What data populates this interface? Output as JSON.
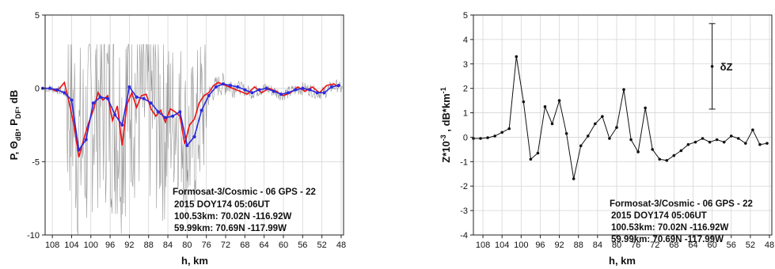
{
  "chart_data": [
    {
      "type": "line",
      "xlabel": "h, km",
      "ylabel_main": "P, Θ",
      "ylabel_sub1": "dB",
      "ylabel_mid": ", P",
      "ylabel_sub2": "DF",
      "ylabel_end": ", dB",
      "xlim": [
        109.5,
        47.5
      ],
      "ylim": [
        -10,
        5
      ],
      "x_ticks": [
        "108",
        "104",
        "100",
        "96",
        "92",
        "88",
        "84",
        "80",
        "76",
        "72",
        "68",
        "64",
        "60",
        "56",
        "52",
        "48"
      ],
      "y_ticks": [
        "5",
        "0",
        "-5",
        "-10"
      ],
      "grid": true,
      "annotations": [
        "Formosat-3/Cosmic - 06  GPS - 22",
        "2015 DOY174 05:06UT",
        "100.53km:  70.02N   -116.92W",
        "59.99km:   70.69N   -117.99W"
      ],
      "colors": {
        "blue": "#2b2be0",
        "red": "#ee1111",
        "gray": "#777777"
      },
      "series": [
        {
          "color": "blue",
          "x": [
            110,
            108.5,
            107,
            105.5,
            104,
            102.5,
            101,
            99.5,
            98,
            96.5,
            95,
            93.5,
            92,
            90.5,
            89,
            87.5,
            86,
            84.5,
            83,
            81.5,
            80,
            78.5,
            77,
            75.5,
            74,
            72.5,
            71,
            69.5,
            68,
            66.5,
            65,
            63.5,
            62,
            60.5,
            59,
            57.5,
            56,
            54.5,
            53,
            51.5,
            50,
            48.5
          ],
          "y": [
            0,
            0,
            -0.1,
            -0.3,
            -0.8,
            -4.2,
            -3.5,
            -1.0,
            -0.6,
            -0.7,
            -1.8,
            -2.5,
            0.1,
            -0.6,
            -0.7,
            -1.0,
            -1.6,
            -2.0,
            -1.9,
            -1.6,
            -3.9,
            -3.3,
            -1.5,
            -0.5,
            0.1,
            0.3,
            0.2,
            0.1,
            -0.1,
            -0.3,
            -0.1,
            0.0,
            -0.2,
            -0.4,
            -0.3,
            -0.1,
            0.0,
            -0.1,
            -0.3,
            -0.3,
            0.1,
            0.2
          ]
        },
        {
          "color": "red",
          "x": [
            110,
            108.5,
            107,
            105.5,
            104.5,
            103.5,
            102.5,
            101.5,
            100.5,
            99.5,
            98.5,
            97.5,
            96.5,
            95.5,
            94.5,
            93.5,
            92.5,
            91.5,
            90.5,
            89.5,
            88.5,
            87.5,
            86.5,
            85.5,
            84.5,
            83.5,
            82.5,
            81.5,
            80.5,
            79.5,
            78.5,
            77.5,
            76.5,
            75.5,
            74.5,
            73.5,
            72,
            70.5,
            69,
            67.5,
            66,
            64.5,
            63,
            61.5,
            60,
            58.5,
            57,
            55.5,
            54,
            52.5,
            51,
            49.5,
            48.5
          ],
          "y": [
            0,
            0,
            -0.2,
            0.4,
            -1.0,
            -2.5,
            -4.7,
            -3.5,
            -2.4,
            -1.5,
            -0.3,
            -0.8,
            -0.5,
            -2.2,
            -1.2,
            -3.9,
            -1.1,
            -0.3,
            -1.3,
            -0.5,
            -0.4,
            -1.4,
            -1.9,
            -1.5,
            -2.3,
            -1.4,
            -1.6,
            -1.9,
            -3.8,
            -2.5,
            -2.1,
            -1.0,
            -0.5,
            -0.3,
            0.2,
            0.4,
            0.2,
            0.0,
            -0.2,
            -0.4,
            0.1,
            -0.3,
            0.0,
            -0.2,
            -0.5,
            -0.3,
            0.1,
            -0.2,
            0.1,
            -0.3,
            0.2,
            0.3,
            0.1
          ]
        }
      ]
    },
    {
      "type": "line",
      "xlabel": "h, km",
      "ylabel_main": "Z*10",
      "ylabel_sup1": "-3",
      "ylabel_mid": " , dB*km",
      "ylabel_sup2": "-1",
      "xlim": [
        110,
        47.5
      ],
      "ylim": [
        -4,
        5
      ],
      "x_ticks": [
        "108",
        "104",
        "100",
        "96",
        "92",
        "88",
        "84",
        "80",
        "76",
        "72",
        "68",
        "64",
        "60",
        "56",
        "52",
        "48"
      ],
      "y_ticks": [
        "5",
        "4",
        "3",
        "2",
        "1",
        "0",
        "-1",
        "-2",
        "-3",
        "-4"
      ],
      "grid": true,
      "error_bar": {
        "label": "δZ",
        "x": 60,
        "y": 2.9,
        "low": 1.15,
        "high": 4.65
      },
      "annotations": [
        "Formosat-3/Cosmic - 06  GPS - 22",
        "2015 DOY174 05:06UT",
        "100.53km:  70.02N   -116.92W",
        "59.99km:   70.69N   -117.99W"
      ],
      "series": [
        {
          "x": [
            110,
            108.5,
            107,
            105.5,
            104,
            102.5,
            101,
            99.5,
            98,
            96.5,
            95,
            93.5,
            92,
            90.5,
            89,
            87.5,
            86,
            84.5,
            83,
            81.5,
            80,
            78.5,
            77,
            75.5,
            74,
            72.5,
            71,
            69.5,
            68,
            66.5,
            65,
            63.5,
            62,
            60.5,
            59,
            57.5,
            56,
            54.5,
            53,
            51.5,
            50,
            48.5
          ],
          "y": [
            -0.05,
            -0.05,
            -0.02,
            0.05,
            0.2,
            0.35,
            3.3,
            1.45,
            -0.9,
            -0.65,
            1.25,
            0.55,
            1.5,
            0.15,
            -1.7,
            -0.35,
            0.05,
            0.55,
            0.85,
            -0.05,
            0.4,
            1.95,
            -0.1,
            -0.6,
            1.2,
            -0.5,
            -0.9,
            -0.95,
            -0.75,
            -0.55,
            -0.3,
            -0.2,
            -0.05,
            -0.2,
            -0.1,
            -0.2,
            0.05,
            -0.05,
            -0.25,
            0.3,
            -0.3,
            -0.25
          ]
        }
      ]
    }
  ]
}
